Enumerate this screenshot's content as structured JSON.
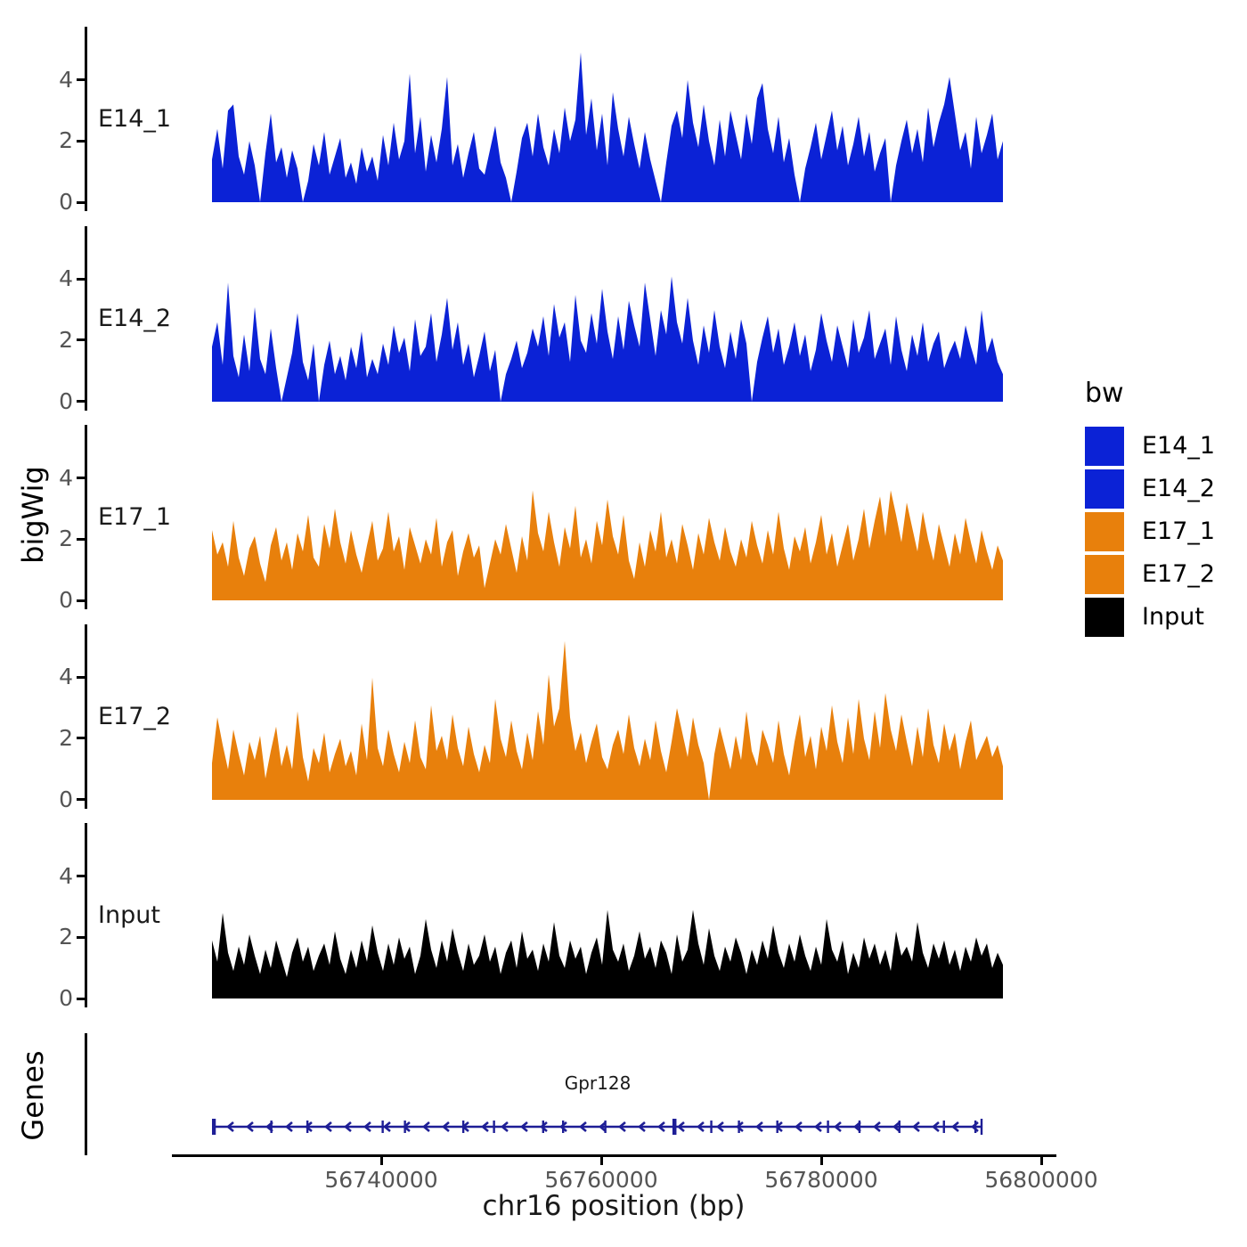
{
  "chart_data": {
    "type": "area",
    "title": "",
    "xlabel": "chr16 position (bp)",
    "ylabel": "bigWig",
    "facet_layout": "stacked-tracks",
    "x_range": [
      56721000,
      56801400
    ],
    "data_range": [
      56724600,
      56796500
    ],
    "x_ticks": [
      56740000,
      56760000,
      56780000,
      56800000
    ],
    "x_tick_labels": [
      "56740000",
      "56760000",
      "56780000",
      "56800000"
    ],
    "y_ticks": [
      0,
      2,
      4
    ],
    "y_tick_labels": [
      "0",
      "2",
      "4"
    ],
    "y_max": 5.8,
    "grid": false,
    "series": [
      {
        "name": "E14_1",
        "color": "#0b22d6",
        "values": [
          1.4,
          2.4,
          1.1,
          3.0,
          3.2,
          1.5,
          0.9,
          2.0,
          1.2,
          0.0,
          1.6,
          2.9,
          1.3,
          1.8,
          0.8,
          1.7,
          1.1,
          0.0,
          0.7,
          1.9,
          1.2,
          2.3,
          0.9,
          1.5,
          2.1,
          0.8,
          1.3,
          0.6,
          1.8,
          1.0,
          1.5,
          0.7,
          2.2,
          1.2,
          2.6,
          1.4,
          2.0,
          4.2,
          1.6,
          2.8,
          1.0,
          2.2,
          1.3,
          2.4,
          4.1,
          1.2,
          1.9,
          0.8,
          1.6,
          2.3,
          1.1,
          0.9,
          1.7,
          2.5,
          1.3,
          0.8,
          0.0,
          1.0,
          2.1,
          2.6,
          1.5,
          2.9,
          1.8,
          1.2,
          2.4,
          1.6,
          3.1,
          2.0,
          2.7,
          4.9,
          2.2,
          3.4,
          1.7,
          2.9,
          1.2,
          3.6,
          2.4,
          1.5,
          2.8,
          1.9,
          1.1,
          2.3,
          1.4,
          0.7,
          0.0,
          1.3,
          2.5,
          3.0,
          2.1,
          4.0,
          2.6,
          1.8,
          3.2,
          2.0,
          1.2,
          2.7,
          1.5,
          3.0,
          2.2,
          1.4,
          2.9,
          1.9,
          3.4,
          3.9,
          2.4,
          1.6,
          2.8,
          1.3,
          2.1,
          0.9,
          0.0,
          1.1,
          1.8,
          2.6,
          1.4,
          2.2,
          3.0,
          1.7,
          2.5,
          1.2,
          1.9,
          2.8,
          1.5,
          2.3,
          1.0,
          1.6,
          2.1,
          0.0,
          1.2,
          2.0,
          2.7,
          1.6,
          2.4,
          1.3,
          3.1,
          1.8,
          2.6,
          3.2,
          4.1,
          2.9,
          1.7,
          2.3,
          1.1,
          2.8,
          1.6,
          2.2,
          2.9,
          1.4,
          2.0
        ]
      },
      {
        "name": "E14_2",
        "color": "#0b22d6",
        "values": [
          1.8,
          2.6,
          1.2,
          3.9,
          1.5,
          0.8,
          2.2,
          1.0,
          3.1,
          1.4,
          0.9,
          2.4,
          1.1,
          0.0,
          0.8,
          1.6,
          2.9,
          1.3,
          0.7,
          1.9,
          0.0,
          1.2,
          2.0,
          0.9,
          1.5,
          0.7,
          1.8,
          1.1,
          2.3,
          0.8,
          1.4,
          0.9,
          1.9,
          1.2,
          2.5,
          1.6,
          2.1,
          1.0,
          2.7,
          1.5,
          1.8,
          2.9,
          1.3,
          2.2,
          3.4,
          1.7,
          2.6,
          1.2,
          1.9,
          0.8,
          1.5,
          2.3,
          1.0,
          1.7,
          0.0,
          0.9,
          1.4,
          2.0,
          1.1,
          1.6,
          2.4,
          1.8,
          2.8,
          1.5,
          3.2,
          2.1,
          2.6,
          1.3,
          3.5,
          2.0,
          1.6,
          2.9,
          1.9,
          3.7,
          2.3,
          1.4,
          2.8,
          1.7,
          3.3,
          2.5,
          1.8,
          3.9,
          2.7,
          1.5,
          3.0,
          2.2,
          4.1,
          2.6,
          1.9,
          3.4,
          2.0,
          1.2,
          2.5,
          1.6,
          3.0,
          1.8,
          1.1,
          2.3,
          1.4,
          2.7,
          1.9,
          0.0,
          1.3,
          2.1,
          2.8,
          1.6,
          2.4,
          1.2,
          1.8,
          2.6,
          1.5,
          2.2,
          1.0,
          1.7,
          2.9,
          2.0,
          1.3,
          2.5,
          1.8,
          1.1,
          2.7,
          1.6,
          2.1,
          3.0,
          1.4,
          1.9,
          2.4,
          1.2,
          2.8,
          1.7,
          1.0,
          2.2,
          1.5,
          2.6,
          1.3,
          1.9,
          2.3,
          1.1,
          1.6,
          2.0,
          1.4,
          2.5,
          1.8,
          1.2,
          3.0,
          1.6,
          2.1,
          1.3,
          0.9
        ]
      },
      {
        "name": "E17_1",
        "color": "#e8800c",
        "values": [
          2.3,
          1.5,
          1.9,
          1.1,
          2.6,
          1.4,
          0.8,
          1.7,
          2.1,
          1.2,
          0.6,
          1.8,
          2.4,
          1.3,
          1.9,
          1.0,
          2.2,
          1.6,
          2.8,
          1.4,
          1.1,
          2.5,
          1.7,
          3.0,
          1.9,
          1.2,
          2.3,
          1.5,
          0.9,
          1.8,
          2.6,
          1.3,
          1.7,
          2.9,
          1.6,
          2.1,
          1.0,
          2.4,
          1.8,
          1.2,
          2.0,
          1.5,
          2.7,
          1.1,
          1.9,
          2.3,
          0.8,
          1.6,
          2.2,
          1.4,
          1.8,
          0.4,
          1.2,
          2.0,
          1.5,
          2.5,
          1.7,
          0.9,
          2.1,
          1.3,
          3.6,
          2.2,
          1.6,
          2.9,
          1.9,
          1.1,
          2.4,
          1.7,
          3.1,
          1.4,
          2.0,
          1.2,
          2.6,
          1.8,
          3.3,
          2.1,
          1.5,
          2.8,
          1.3,
          0.7,
          1.9,
          1.1,
          2.3,
          1.6,
          2.9,
          1.4,
          2.0,
          1.2,
          2.5,
          1.8,
          1.0,
          2.2,
          1.5,
          2.7,
          1.9,
          1.3,
          2.4,
          1.6,
          1.1,
          2.0,
          1.4,
          2.6,
          1.8,
          1.2,
          2.3,
          1.5,
          2.9,
          1.7,
          1.0,
          2.1,
          1.6,
          2.4,
          1.2,
          1.9,
          2.8,
          1.5,
          2.2,
          1.1,
          1.8,
          2.5,
          1.3,
          2.0,
          3.0,
          1.7,
          2.6,
          3.4,
          2.1,
          3.6,
          2.8,
          1.9,
          3.2,
          2.4,
          1.6,
          2.9,
          2.0,
          1.3,
          2.5,
          1.8,
          1.1,
          2.2,
          1.5,
          2.7,
          1.9,
          1.2,
          2.3,
          1.6,
          1.0,
          1.8,
          1.3
        ]
      },
      {
        "name": "E17_2",
        "color": "#e8800c",
        "values": [
          1.2,
          2.7,
          1.8,
          1.0,
          2.3,
          1.5,
          0.8,
          1.9,
          1.3,
          2.1,
          0.7,
          1.6,
          2.4,
          1.1,
          1.8,
          1.0,
          2.9,
          1.4,
          0.6,
          1.7,
          1.2,
          2.2,
          0.9,
          1.5,
          2.0,
          1.1,
          1.6,
          0.8,
          2.5,
          1.3,
          4.0,
          1.7,
          1.1,
          2.3,
          1.5,
          0.9,
          1.9,
          1.2,
          2.6,
          1.4,
          1.0,
          3.1,
          1.6,
          2.1,
          1.3,
          2.8,
          1.7,
          1.1,
          2.4,
          1.5,
          0.9,
          1.8,
          1.2,
          3.3,
          2.0,
          1.4,
          2.6,
          1.6,
          1.0,
          2.2,
          1.3,
          2.9,
          1.8,
          4.1,
          2.4,
          3.0,
          5.2,
          2.7,
          1.6,
          2.2,
          1.2,
          1.9,
          2.5,
          1.4,
          1.0,
          1.8,
          2.3,
          1.5,
          2.8,
          1.7,
          1.1,
          2.0,
          1.3,
          2.6,
          1.6,
          0.9,
          1.9,
          3.0,
          2.2,
          1.4,
          2.7,
          1.8,
          1.2,
          0.0,
          1.5,
          2.4,
          1.7,
          1.0,
          2.1,
          1.3,
          2.9,
          1.6,
          1.1,
          2.3,
          1.8,
          1.2,
          2.6,
          1.5,
          0.8,
          1.9,
          2.8,
          1.4,
          2.1,
          1.0,
          2.4,
          1.6,
          3.1,
          1.9,
          1.2,
          2.7,
          1.5,
          3.3,
          2.0,
          1.3,
          2.9,
          1.7,
          3.5,
          2.3,
          1.6,
          2.8,
          1.9,
          1.1,
          2.4,
          1.4,
          3.0,
          1.8,
          1.2,
          2.5,
          1.6,
          2.2,
          1.0,
          1.9,
          2.6,
          1.3,
          1.7,
          2.1,
          1.4,
          1.8,
          1.1
        ]
      },
      {
        "name": "Input",
        "color": "#000000",
        "values": [
          1.9,
          1.2,
          2.8,
          1.5,
          0.9,
          1.7,
          1.1,
          2.1,
          1.4,
          0.8,
          1.6,
          1.0,
          1.9,
          1.3,
          0.7,
          1.5,
          2.0,
          1.2,
          1.7,
          0.9,
          1.4,
          1.8,
          1.1,
          2.2,
          1.3,
          0.8,
          1.6,
          1.0,
          1.9,
          1.2,
          2.4,
          1.5,
          0.9,
          1.8,
          1.1,
          2.0,
          1.3,
          1.7,
          0.8,
          1.4,
          2.6,
          1.6,
          1.0,
          1.9,
          1.2,
          2.3,
          1.5,
          0.9,
          1.8,
          1.1,
          1.4,
          2.1,
          1.2,
          1.7,
          0.8,
          1.5,
          1.9,
          1.0,
          2.2,
          1.3,
          1.6,
          0.9,
          1.8,
          1.2,
          2.5,
          1.4,
          1.0,
          1.9,
          1.3,
          1.7,
          0.8,
          1.5,
          2.0,
          1.1,
          2.9,
          1.6,
          1.2,
          1.8,
          0.9,
          1.4,
          2.2,
          1.3,
          1.7,
          1.0,
          1.9,
          1.5,
          0.8,
          2.1,
          1.2,
          1.6,
          2.9,
          1.8,
          1.1,
          2.3,
          1.4,
          0.9,
          1.7,
          1.2,
          2.0,
          1.5,
          0.8,
          1.6,
          1.1,
          1.9,
          1.3,
          2.4,
          1.5,
          1.0,
          1.8,
          1.2,
          2.1,
          1.4,
          0.9,
          1.7,
          1.1,
          2.6,
          1.6,
          1.2,
          1.9,
          0.8,
          1.5,
          1.0,
          2.0,
          1.3,
          1.8,
          1.1,
          1.6,
          0.9,
          2.2,
          1.4,
          1.7,
          1.2,
          2.5,
          1.5,
          1.0,
          1.8,
          1.3,
          1.9,
          1.1,
          1.6,
          0.9,
          1.7,
          1.2,
          2.0,
          1.4,
          1.8,
          1.0,
          1.5,
          1.1
        ]
      }
    ]
  },
  "genes": {
    "ylabel": "Genes",
    "gene": {
      "label": "Gpr128",
      "strand": "-",
      "color": "#1e1e96",
      "start": 56724800,
      "end": 56794900,
      "exon_fractions": [
        0.0,
        0.075,
        0.122,
        0.22,
        0.249,
        0.325,
        0.365,
        0.429,
        0.455,
        0.51,
        0.6,
        0.648,
        0.684,
        0.734,
        0.8,
        0.841,
        0.893,
        0.951,
        0.992,
        1.0
      ]
    }
  },
  "legend": {
    "title": "bw",
    "entries": [
      {
        "label": "E14_1",
        "color": "#0b22d6"
      },
      {
        "label": "E14_2",
        "color": "#0b22d6"
      },
      {
        "label": "E17_1",
        "color": "#e8800c"
      },
      {
        "label": "E17_2",
        "color": "#e8800c"
      },
      {
        "label": "Input",
        "color": "#000000"
      }
    ]
  },
  "colors": {
    "axis": "#000000",
    "tick_label": "#555555",
    "text": "#1a1a1a"
  }
}
